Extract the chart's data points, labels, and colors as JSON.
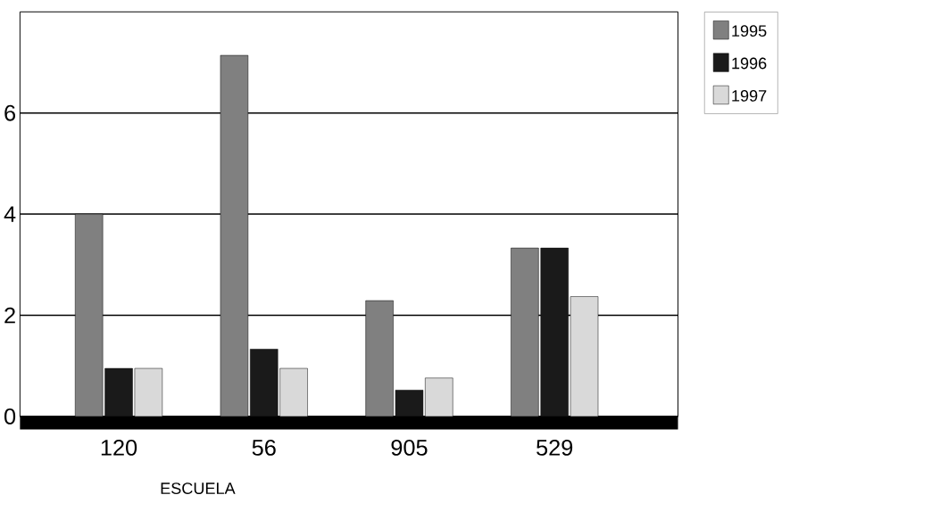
{
  "chart_data": {
    "type": "bar",
    "xlabel": "ESCUELA",
    "categories": [
      "120",
      "56",
      "905",
      "529"
    ],
    "series": [
      {
        "name": "1995",
        "color": "#808080",
        "values": [
          4.0,
          7.14,
          2.29,
          3.33
        ]
      },
      {
        "name": "1996",
        "color": "#1a1a1a",
        "values": [
          0.95,
          1.33,
          0.52,
          3.33
        ]
      },
      {
        "name": "1997",
        "color": "#d9d9d9",
        "values": [
          0.95,
          0.95,
          0.76,
          2.37
        ]
      }
    ],
    "ylim": [
      0,
      8
    ],
    "yticks": [
      0,
      2,
      4,
      6
    ],
    "grid": "y",
    "legend": "top right"
  }
}
